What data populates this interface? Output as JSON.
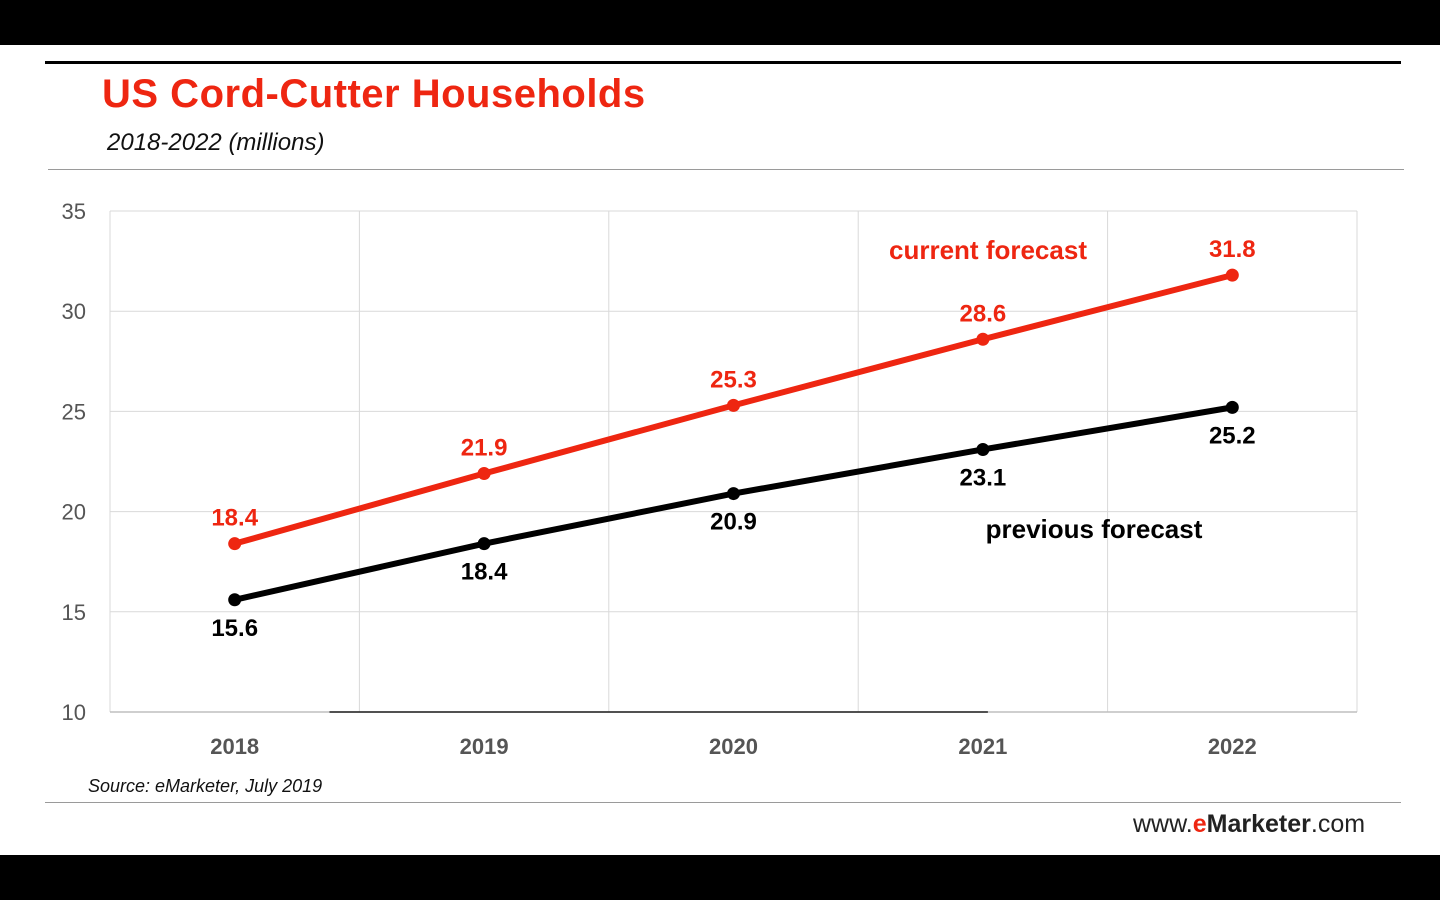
{
  "header": {
    "title": "US Cord-Cutter Households",
    "subtitle": "2018-2022 (millions)"
  },
  "footer": {
    "source": "Source: eMarketer, July 2019",
    "brand_prefix": "www.",
    "brand_e": "e",
    "brand_name": "Marketer",
    "brand_suffix": ".com"
  },
  "colors": {
    "current": "#ee2611",
    "previous": "#000000",
    "grid": "#d9d9d9"
  },
  "chart_data": {
    "type": "line",
    "title": "US Cord-Cutter Households",
    "subtitle": "2018-2022 (millions)",
    "categories": [
      "2018",
      "2019",
      "2020",
      "2021",
      "2022"
    ],
    "ylim": [
      10,
      35
    ],
    "yticks": [
      "10",
      "15",
      "20",
      "25",
      "30",
      "35"
    ],
    "grid": true,
    "series": [
      {
        "name": "current forecast",
        "values": [
          18.4,
          21.9,
          25.3,
          28.6,
          31.8
        ],
        "labels": [
          "18.4",
          "21.9",
          "25.3",
          "28.6",
          "31.8"
        ],
        "color": "#ee2611"
      },
      {
        "name": "previous forecast",
        "values": [
          15.6,
          18.4,
          20.9,
          23.1,
          25.2
        ],
        "labels": [
          "15.6",
          "18.4",
          "20.9",
          "23.1",
          "25.2"
        ],
        "color": "#000000"
      }
    ]
  }
}
